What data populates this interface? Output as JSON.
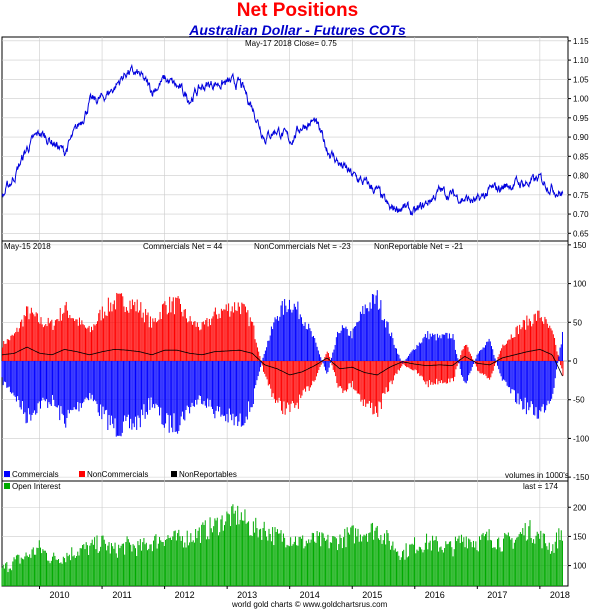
{
  "chart_data": [
    {
      "type": "line",
      "title": "Net Positions",
      "subtitle": "Australian Dollar - Futures COTs",
      "header": "May-17  2018   Close= 0.75",
      "ylim": [
        0.63,
        1.16
      ],
      "yticks": [
        "1.15",
        "1.10",
        "1.05",
        "1.00",
        "0.95",
        "0.90",
        "0.85",
        "0.80",
        "0.75",
        "0.70",
        "0.65"
      ],
      "ytick_values": [
        1.15,
        1.1,
        1.05,
        1.0,
        0.95,
        0.9,
        0.85,
        0.8,
        0.75,
        0.7,
        0.65
      ],
      "x": [
        2009.4,
        2009.6,
        2009.8,
        2010.0,
        2010.2,
        2010.4,
        2010.6,
        2010.8,
        2011.0,
        2011.2,
        2011.4,
        2011.6,
        2011.8,
        2012.0,
        2012.2,
        2012.4,
        2012.6,
        2012.8,
        2013.0,
        2013.2,
        2013.4,
        2013.6,
        2013.8,
        2014.0,
        2014.2,
        2014.4,
        2014.6,
        2014.8,
        2015.0,
        2015.2,
        2015.4,
        2015.6,
        2015.8,
        2016.0,
        2016.2,
        2016.4,
        2016.6,
        2016.8,
        2017.0,
        2017.2,
        2017.4,
        2017.6,
        2017.8,
        2018.0,
        2018.2,
        2018.37
      ],
      "series": [
        {
          "values": [
            0.74,
            0.8,
            0.87,
            0.91,
            0.89,
            0.86,
            0.92,
            0.99,
            1.0,
            1.03,
            1.07,
            1.06,
            1.02,
            1.05,
            1.03,
            1.0,
            1.03,
            1.04,
            1.04,
            1.04,
            0.98,
            0.9,
            0.92,
            0.89,
            0.93,
            0.94,
            0.87,
            0.83,
            0.8,
            0.78,
            0.76,
            0.71,
            0.72,
            0.7,
            0.73,
            0.76,
            0.75,
            0.74,
            0.73,
            0.76,
            0.77,
            0.78,
            0.78,
            0.79,
            0.77,
            0.75
          ],
          "color": "#0000dd"
        }
      ]
    },
    {
      "type": "bar",
      "header": "May-15  2018",
      "labels": [
        "Commercials Net = 44",
        "NonCommercials Net = -23",
        "NonReportable Net = -21"
      ],
      "ylim": [
        -155,
        155
      ],
      "yticks": [
        "150",
        "100",
        "50",
        "0",
        "-50",
        "-100",
        "-150"
      ],
      "ytick_values": [
        150,
        100,
        50,
        0,
        -50,
        -100,
        -150
      ],
      "legend": [
        "Commercials",
        "NonCommercials",
        "NonReportables"
      ],
      "legend_colors": [
        "#0000ff",
        "#ff0000",
        "#000000"
      ],
      "note": "volumes in 1000's",
      "x": [
        2009.4,
        2009.6,
        2009.8,
        2010.0,
        2010.2,
        2010.4,
        2010.6,
        2010.8,
        2011.0,
        2011.2,
        2011.4,
        2011.6,
        2011.8,
        2012.0,
        2012.2,
        2012.4,
        2012.6,
        2012.8,
        2013.0,
        2013.2,
        2013.4,
        2013.6,
        2013.8,
        2014.0,
        2014.2,
        2014.4,
        2014.6,
        2014.8,
        2015.0,
        2015.2,
        2015.4,
        2015.6,
        2015.8,
        2016.0,
        2016.2,
        2016.4,
        2016.6,
        2016.8,
        2017.0,
        2017.2,
        2017.4,
        2017.6,
        2017.8,
        2018.0,
        2018.2,
        2018.37
      ],
      "series": [
        {
          "name": "Commercials",
          "values": [
            -30,
            -50,
            -85,
            -65,
            -60,
            -90,
            -70,
            -50,
            -80,
            -100,
            -100,
            -90,
            -60,
            -95,
            -95,
            -70,
            -55,
            -75,
            -85,
            -95,
            -65,
            15,
            70,
            90,
            70,
            30,
            -20,
            50,
            40,
            80,
            95,
            45,
            -5,
            20,
            40,
            35,
            40,
            -40,
            10,
            30,
            -30,
            -55,
            -70,
            -80,
            -50,
            44
          ],
          "color": "#0000ff"
        },
        {
          "name": "NonCommercials",
          "values": [
            25,
            40,
            75,
            60,
            55,
            80,
            60,
            45,
            75,
            90,
            90,
            80,
            55,
            85,
            85,
            60,
            50,
            70,
            80,
            85,
            55,
            -25,
            -65,
            -75,
            -55,
            -25,
            15,
            -45,
            -35,
            -65,
            -75,
            -35,
            -5,
            -15,
            -35,
            -30,
            -30,
            30,
            -15,
            -25,
            25,
            45,
            60,
            70,
            40,
            -23
          ],
          "color": "#ff0000"
        },
        {
          "name": "NonReportables",
          "values": [
            8,
            10,
            18,
            10,
            8,
            15,
            12,
            8,
            12,
            15,
            14,
            12,
            8,
            14,
            14,
            10,
            8,
            12,
            13,
            14,
            10,
            -5,
            -10,
            -18,
            -14,
            -6,
            4,
            -10,
            -8,
            -15,
            -18,
            -8,
            -1,
            -4,
            -6,
            -5,
            -6,
            6,
            -3,
            -5,
            4,
            8,
            12,
            15,
            8,
            -21
          ],
          "color": "#000000"
        }
      ]
    },
    {
      "type": "bar",
      "legend": [
        "Open Interest"
      ],
      "legend_colors": [
        "#00aa00"
      ],
      "note": "last = 174",
      "ylim": [
        65,
        245
      ],
      "yticks": [
        "200",
        "150",
        "100"
      ],
      "ytick_values": [
        200,
        150,
        100
      ],
      "x": [
        2009.4,
        2009.6,
        2009.8,
        2010.0,
        2010.2,
        2010.4,
        2010.6,
        2010.8,
        2011.0,
        2011.2,
        2011.4,
        2011.6,
        2011.8,
        2012.0,
        2012.2,
        2012.4,
        2012.6,
        2012.8,
        2013.0,
        2013.2,
        2013.4,
        2013.6,
        2013.8,
        2014.0,
        2014.2,
        2014.4,
        2014.6,
        2014.8,
        2015.0,
        2015.2,
        2015.4,
        2015.6,
        2015.8,
        2016.0,
        2016.2,
        2016.4,
        2016.6,
        2016.8,
        2017.0,
        2017.2,
        2017.4,
        2017.6,
        2017.8,
        2018.0,
        2018.2,
        2018.37
      ],
      "series": [
        {
          "name": "Open Interest",
          "values": [
            100,
            115,
            125,
            140,
            120,
            125,
            135,
            140,
            150,
            135,
            145,
            140,
            150,
            160,
            155,
            160,
            170,
            180,
            195,
            200,
            175,
            175,
            160,
            160,
            150,
            155,
            150,
            155,
            165,
            170,
            175,
            150,
            130,
            145,
            150,
            145,
            140,
            160,
            150,
            160,
            150,
            155,
            175,
            160,
            140,
            174
          ],
          "color": "#00aa00"
        }
      ]
    }
  ],
  "x_axis": {
    "labels": [
      "2010",
      "2011",
      "2012",
      "2013",
      "2014",
      "2015",
      "2016",
      "2017",
      "2018"
    ],
    "values": [
      2010,
      2011,
      2012,
      2013,
      2014,
      2015,
      2016,
      2017,
      2018
    ],
    "range": [
      2009.4,
      2018.45
    ]
  },
  "footer": "world gold charts © www.goldchartsrus.com"
}
